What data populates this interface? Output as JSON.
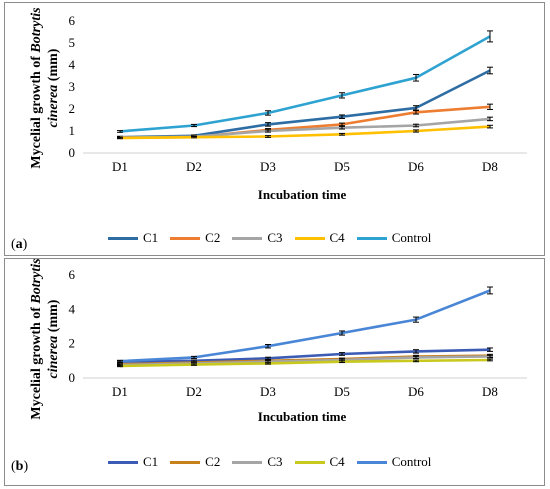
{
  "chart_data": [
    {
      "type": "line",
      "panel_label": "a",
      "categories": [
        "D1",
        "D2",
        "D3",
        "D5",
        "D6",
        "D8"
      ],
      "ylabel_line1": "Mycelial growth of",
      "ylabel_genus": "Botrytis",
      "ylabel_species": "cinerea",
      "ylabel_unit": "(mm)",
      "xlabel": "Incubation time",
      "ylim": [
        0,
        6
      ],
      "yticks": [
        "0",
        "1",
        "2",
        "3",
        "4",
        "5",
        "6"
      ],
      "grid": false,
      "legend_position": "bottom",
      "series": [
        {
          "name": "C1",
          "color": "#2e6da4",
          "values": [
            0.72,
            0.78,
            1.3,
            1.65,
            2.05,
            3.75
          ],
          "errors": [
            0.04,
            0.04,
            0.08,
            0.08,
            0.1,
            0.15
          ]
        },
        {
          "name": "C2",
          "color": "#ed7d31",
          "values": [
            0.7,
            0.72,
            1.05,
            1.3,
            1.85,
            2.1
          ],
          "errors": [
            0.03,
            0.03,
            0.06,
            0.06,
            0.08,
            0.12
          ]
        },
        {
          "name": "C3",
          "color": "#a5a5a5",
          "values": [
            0.7,
            0.74,
            1.0,
            1.15,
            1.25,
            1.55
          ],
          "errors": [
            0.03,
            0.03,
            0.05,
            0.06,
            0.06,
            0.08
          ]
        },
        {
          "name": "C4",
          "color": "#ffc000",
          "values": [
            0.68,
            0.72,
            0.75,
            0.85,
            1.0,
            1.2
          ],
          "errors": [
            0.03,
            0.03,
            0.04,
            0.04,
            0.05,
            0.06
          ]
        },
        {
          "name": "Control",
          "color": "#2ea3d1",
          "values": [
            0.98,
            1.25,
            1.82,
            2.62,
            3.42,
            5.3
          ],
          "errors": [
            0.04,
            0.05,
            0.1,
            0.12,
            0.15,
            0.25
          ]
        }
      ]
    },
    {
      "type": "line",
      "panel_label": "b",
      "categories": [
        "D1",
        "D2",
        "D3",
        "D5",
        "D6",
        "D8"
      ],
      "ylabel_line1": "Mycelial growth of",
      "ylabel_genus": "Botrytis",
      "ylabel_species": "cinerea",
      "ylabel_unit": "(mm)",
      "xlabel": "Incubation time",
      "ylim": [
        0,
        6
      ],
      "yticks": [
        "0",
        "2",
        "4",
        "6"
      ],
      "grid": false,
      "legend_position": "bottom",
      "series": [
        {
          "name": "C1",
          "color": "#3b5bb5",
          "values": [
            0.95,
            1.0,
            1.15,
            1.4,
            1.55,
            1.65
          ],
          "errors": [
            0.05,
            0.05,
            0.06,
            0.08,
            0.1,
            0.1
          ]
        },
        {
          "name": "C2",
          "color": "#c8801a",
          "values": [
            0.8,
            0.9,
            1.0,
            1.1,
            1.25,
            1.3
          ],
          "errors": [
            0.04,
            0.04,
            0.05,
            0.06,
            0.07,
            0.08
          ]
        },
        {
          "name": "C3",
          "color": "#a5a5a5",
          "values": [
            0.75,
            0.85,
            0.95,
            1.05,
            1.2,
            1.25
          ],
          "errors": [
            0.04,
            0.04,
            0.05,
            0.05,
            0.06,
            0.07
          ]
        },
        {
          "name": "C4",
          "color": "#c8c81e",
          "values": [
            0.7,
            0.78,
            0.85,
            0.95,
            1.0,
            1.05
          ],
          "errors": [
            0.04,
            0.04,
            0.04,
            0.05,
            0.05,
            0.05
          ]
        },
        {
          "name": "Control",
          "color": "#4a86d6",
          "values": [
            0.98,
            1.2,
            1.85,
            2.62,
            3.4,
            5.1
          ],
          "errors": [
            0.05,
            0.06,
            0.1,
            0.12,
            0.15,
            0.2
          ]
        }
      ]
    }
  ]
}
